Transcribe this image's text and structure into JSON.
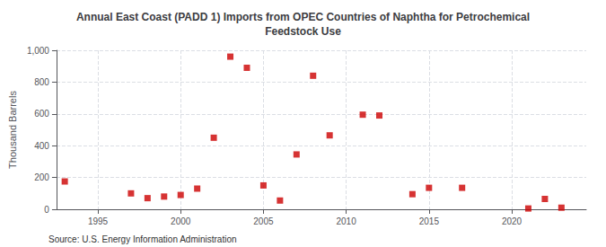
{
  "chart_data": {
    "type": "scatter",
    "title": "Annual East Coast (PADD 1) Imports from OPEC Countries of Naphtha for Petrochemical\nFeedstock Use",
    "ylabel": "Thousand Barrels",
    "annotation": "Source: U.S. Energy Information Administration",
    "color": "#cc0000",
    "marker": "square",
    "grid": true,
    "xlim": [
      1992.5,
      2024.5
    ],
    "xticks": [
      1995,
      2000,
      2005,
      2010,
      2015,
      2020
    ],
    "ylim": [
      0,
      1000
    ],
    "yticks": [
      0,
      200,
      400,
      600,
      800,
      {
        "value": 1000,
        "label": "1,000"
      }
    ],
    "x": [
      1993,
      1997,
      1998,
      1999,
      2000,
      2001,
      2002,
      2003,
      2004,
      2005,
      2006,
      2007,
      2008,
      2009,
      2011,
      2012,
      2014,
      2015,
      2017,
      2021,
      2022,
      2023
    ],
    "values": [
      175,
      100,
      70,
      80,
      90,
      130,
      450,
      960,
      890,
      150,
      55,
      345,
      840,
      465,
      595,
      590,
      95,
      135,
      135,
      5,
      65,
      10
    ]
  }
}
